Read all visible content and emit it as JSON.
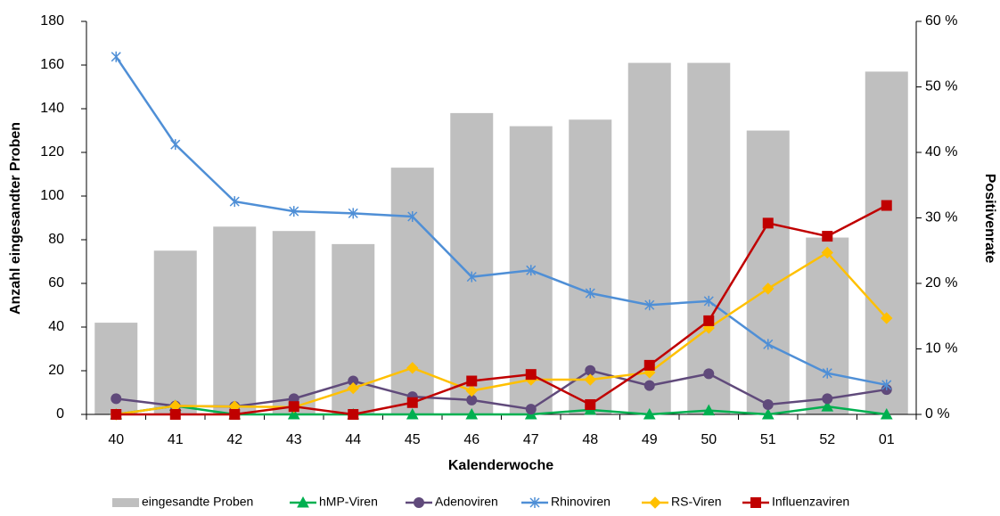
{
  "chart_data": {
    "type": "bar-line",
    "x_label": "Kalenderwoche",
    "y_label": "Anzahl eingesandter Proben",
    "y2_label": "Positivenrate",
    "categories": [
      "40",
      "41",
      "42",
      "43",
      "44",
      "45",
      "46",
      "47",
      "48",
      "49",
      "50",
      "51",
      "52",
      "01"
    ],
    "ylim": [
      0,
      180
    ],
    "yticks": [
      0,
      20,
      40,
      60,
      80,
      100,
      120,
      140,
      160,
      180
    ],
    "y2lim": [
      0,
      60
    ],
    "y2ticks": [
      {
        "value": 0,
        "label": "0 %"
      },
      {
        "value": 10,
        "label": "10 %"
      },
      {
        "value": 20,
        "label": "20 %"
      },
      {
        "value": 30,
        "label": "30 %"
      },
      {
        "value": 40,
        "label": "40 %"
      },
      {
        "value": 50,
        "label": "50 %"
      },
      {
        "value": 60,
        "label": "60 %"
      }
    ],
    "series": [
      {
        "name": "eingesandte Proben",
        "type": "bar",
        "color": "#bfbfbf",
        "values": [
          42,
          75,
          86,
          84,
          78,
          113,
          138,
          132,
          135,
          161,
          161,
          130,
          81,
          157
        ]
      },
      {
        "name": "hMP-Viren",
        "type": "line",
        "axis": "y2",
        "marker": "triangle",
        "color": "#00b050",
        "values": [
          0,
          1.3,
          0,
          0,
          0,
          0,
          0,
          0,
          0.7,
          0,
          0.6,
          0,
          1.2,
          0
        ]
      },
      {
        "name": "Adenoviren",
        "type": "line",
        "axis": "y2",
        "marker": "circle",
        "color": "#604a7b",
        "values": [
          2.4,
          1.3,
          1.2,
          2.4,
          5.1,
          2.7,
          2.2,
          0.8,
          6.7,
          4.4,
          6.2,
          1.5,
          2.4,
          3.8
        ]
      },
      {
        "name": "Rhinoviren",
        "type": "line",
        "axis": "y2",
        "marker": "star",
        "color": "#4f8fd6",
        "values": [
          54.6,
          41.2,
          32.5,
          31.0,
          30.7,
          30.2,
          21.0,
          22.0,
          18.5,
          16.7,
          17.3,
          10.7,
          6.3,
          4.5
        ]
      },
      {
        "name": "RS-Viren",
        "type": "line",
        "axis": "y2",
        "marker": "diamond",
        "color": "#ffc000",
        "values": [
          0,
          1.3,
          1.2,
          1.1,
          4.0,
          7.1,
          3.6,
          5.3,
          5.3,
          6.4,
          13.2,
          19.2,
          24.7,
          14.7
        ]
      },
      {
        "name": "Influenzaviren",
        "type": "line",
        "axis": "y2",
        "marker": "square",
        "color": "#c00000",
        "values": [
          0,
          0,
          0,
          1.2,
          0,
          1.8,
          5.1,
          6.1,
          1.5,
          7.5,
          14.3,
          29.2,
          27.2,
          31.9
        ]
      }
    ]
  }
}
